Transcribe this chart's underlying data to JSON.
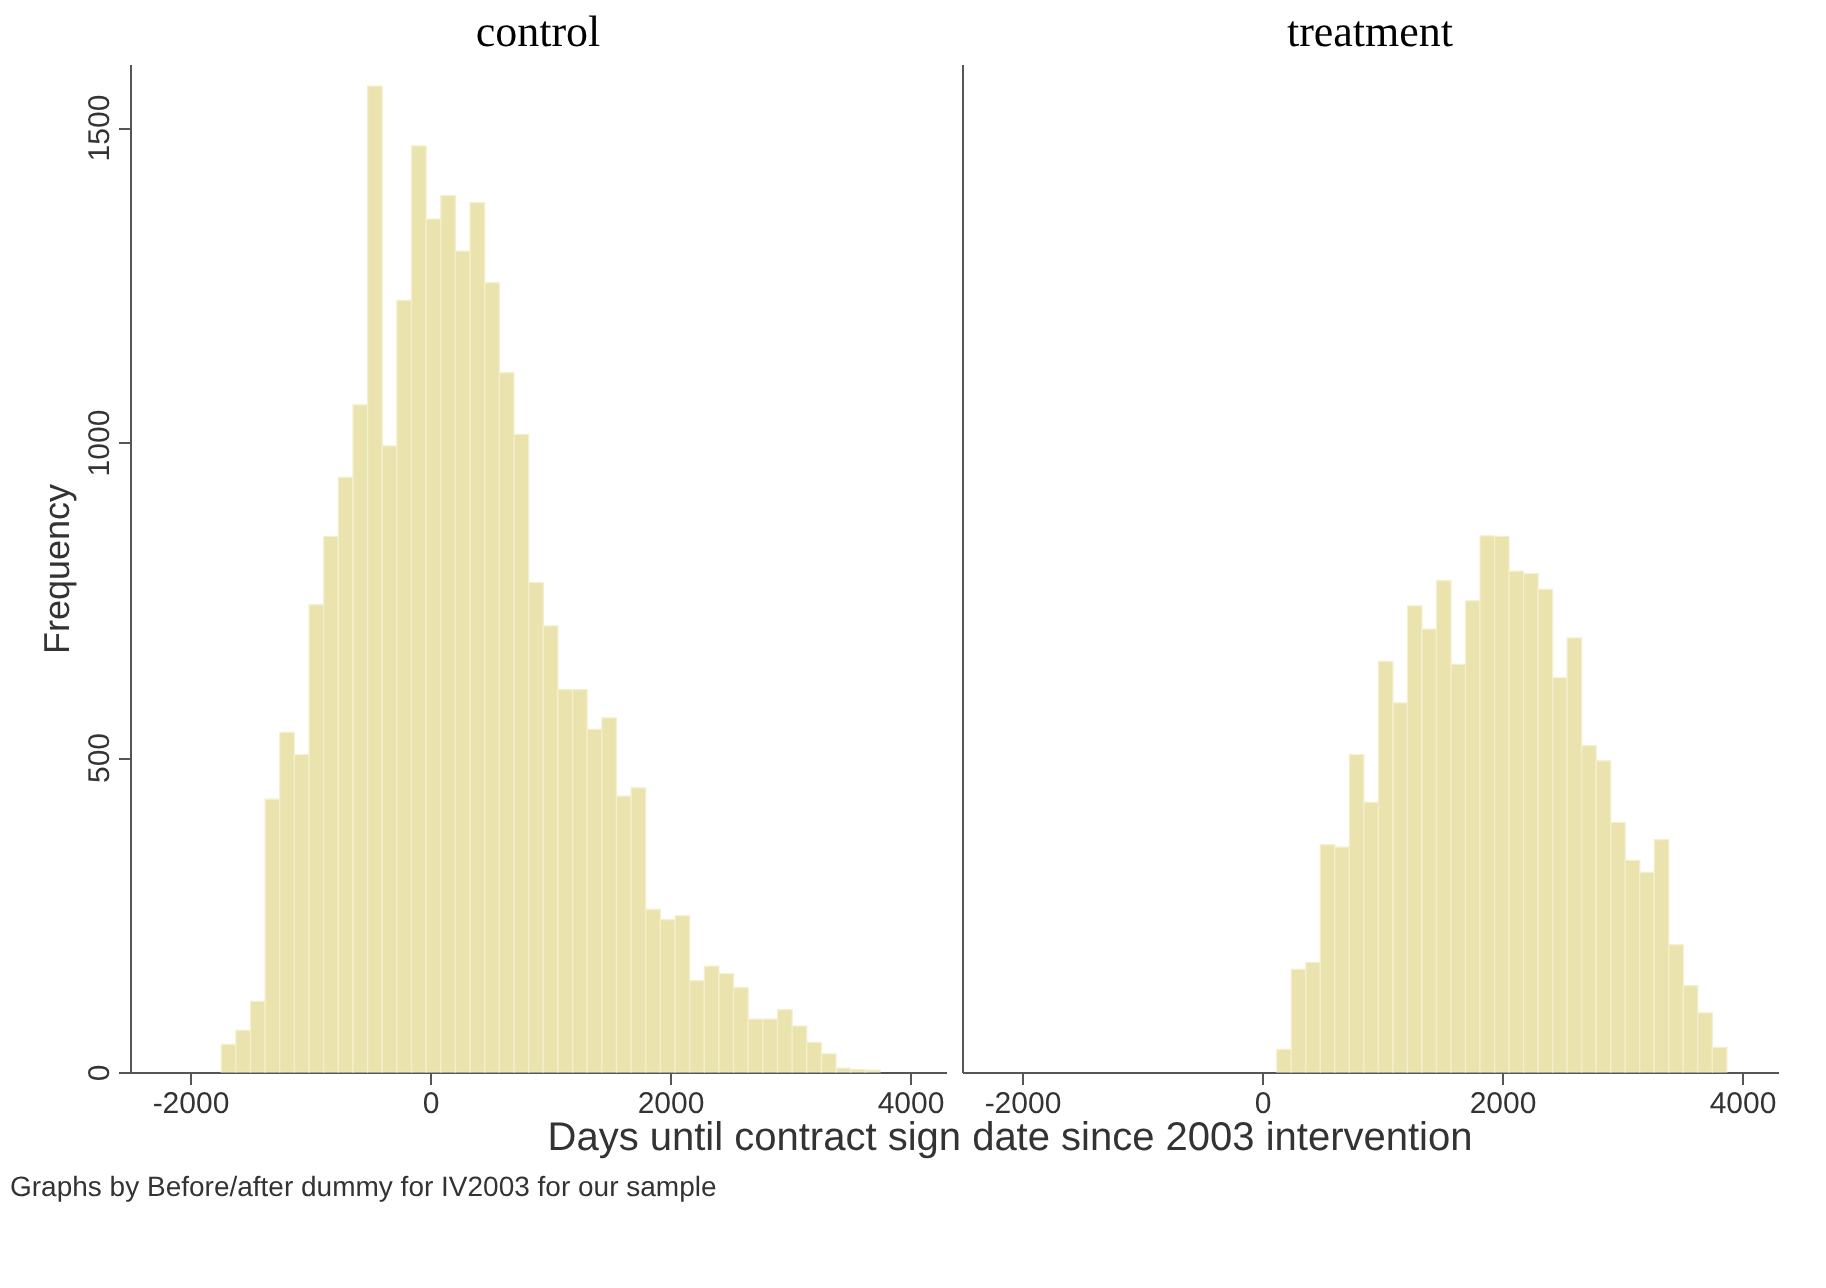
{
  "chart_data": [
    {
      "type": "histogram",
      "title": "control",
      "xlabel": "Days until contract sign date since 2003 intervention",
      "ylabel": "Frequency",
      "annotations": [
        "Graphs by Before/after dummy for IV2003 for our sample"
      ],
      "color": "#ebe3ad",
      "bins": [
        -1740,
        -1618,
        -1496,
        -1374,
        -1252,
        -1130,
        -1008,
        -886,
        -764,
        -642,
        -520,
        -398,
        -276,
        -154,
        -32,
        90,
        212,
        334,
        456,
        578,
        700,
        822,
        944,
        1066,
        1188,
        1310,
        1432,
        1554,
        1676,
        1798,
        1920,
        2042,
        2164,
        2286,
        2408,
        2530,
        2652,
        2774,
        2896,
        3018,
        3140,
        3262,
        3384,
        3506,
        3628,
        3750
      ],
      "values": [
        44,
        66,
        112,
        433,
        539,
        504,
        742,
        850,
        944,
        1059,
        1565,
        994,
        1225,
        1470,
        1354,
        1391,
        1303,
        1380,
        1253,
        1110,
        1012,
        777,
        708,
        607,
        607,
        544,
        562,
        438,
        451,
        258,
        242,
        248,
        145,
        168,
        156,
        134,
        84,
        84,
        99,
        73,
        47,
        29,
        6,
        4,
        3
      ],
      "xlim": [
        -2500,
        4300
      ],
      "ylim": [
        0,
        1600
      ],
      "xticks": [
        -2000,
        0,
        2000,
        4000
      ],
      "yticks": [
        0,
        500,
        1000,
        1500
      ]
    },
    {
      "type": "histogram",
      "title": "treatment",
      "color": "#ebe3ad",
      "tick_labels": "x",
      "bins": [
        123,
        244,
        365,
        486,
        607,
        728,
        849,
        970,
        1091,
        1212,
        1333,
        1454,
        1575,
        1696,
        1817,
        1938,
        2059,
        2180,
        2301,
        2422,
        2543,
        2664,
        2785,
        2906,
        3027,
        3148,
        3269,
        3390,
        3511,
        3632,
        3753,
        3874
      ],
      "values": [
        36,
        163,
        174,
        361,
        357,
        504,
        428,
        652,
        586,
        740,
        703,
        780,
        647,
        748,
        851,
        850,
        795,
        791,
        766,
        626,
        689,
        518,
        494,
        396,
        336,
        317,
        369,
        202,
        137,
        94,
        39
      ],
      "xlim": [
        -2500,
        4300
      ],
      "ylim": [
        0,
        1600
      ],
      "xticks": [
        -2000,
        0,
        2000,
        4000
      ]
    }
  ]
}
